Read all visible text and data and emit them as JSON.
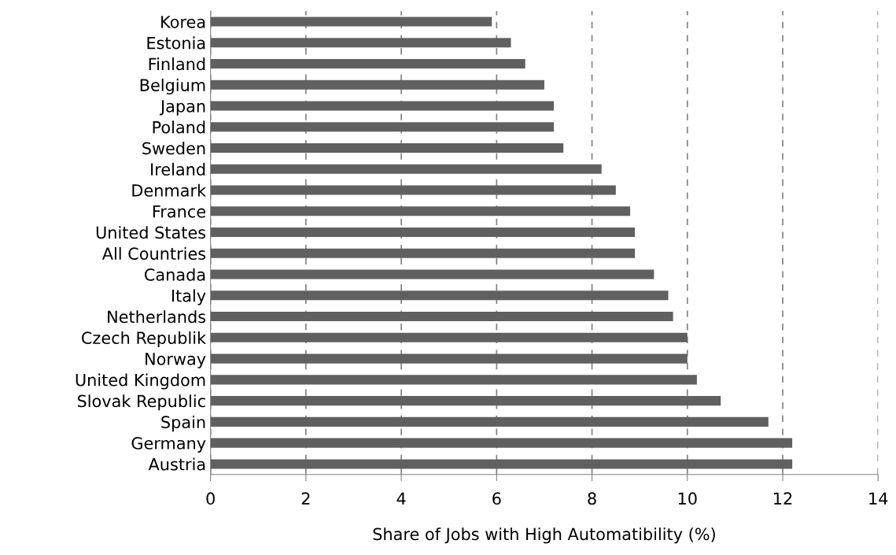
{
  "chart_data": {
    "type": "bar",
    "orientation": "horizontal",
    "xlabel": "Share of Jobs with High Automatibility (%)",
    "categories": [
      "Korea",
      "Estonia",
      "Finland",
      "Belgium",
      "Japan",
      "Poland",
      "Sweden",
      "Ireland",
      "Denmark",
      "France",
      "United States",
      "All Countries",
      "Canada",
      "Italy",
      "Netherlands",
      "Czech Republik",
      "Norway",
      "United Kingdom",
      "Slovak Republic",
      "Spain",
      "Germany",
      "Austria"
    ],
    "values": [
      5.9,
      6.3,
      6.6,
      7.0,
      7.2,
      7.2,
      7.4,
      8.2,
      8.5,
      8.8,
      8.9,
      8.9,
      9.3,
      9.6,
      9.7,
      10.0,
      10.0,
      10.2,
      10.7,
      11.7,
      12.2,
      12.2
    ],
    "color": "#606060",
    "xlim": [
      0,
      14
    ],
    "xticks": [
      0,
      2,
      4,
      6,
      8,
      10,
      12,
      14
    ],
    "grid": "x"
  }
}
